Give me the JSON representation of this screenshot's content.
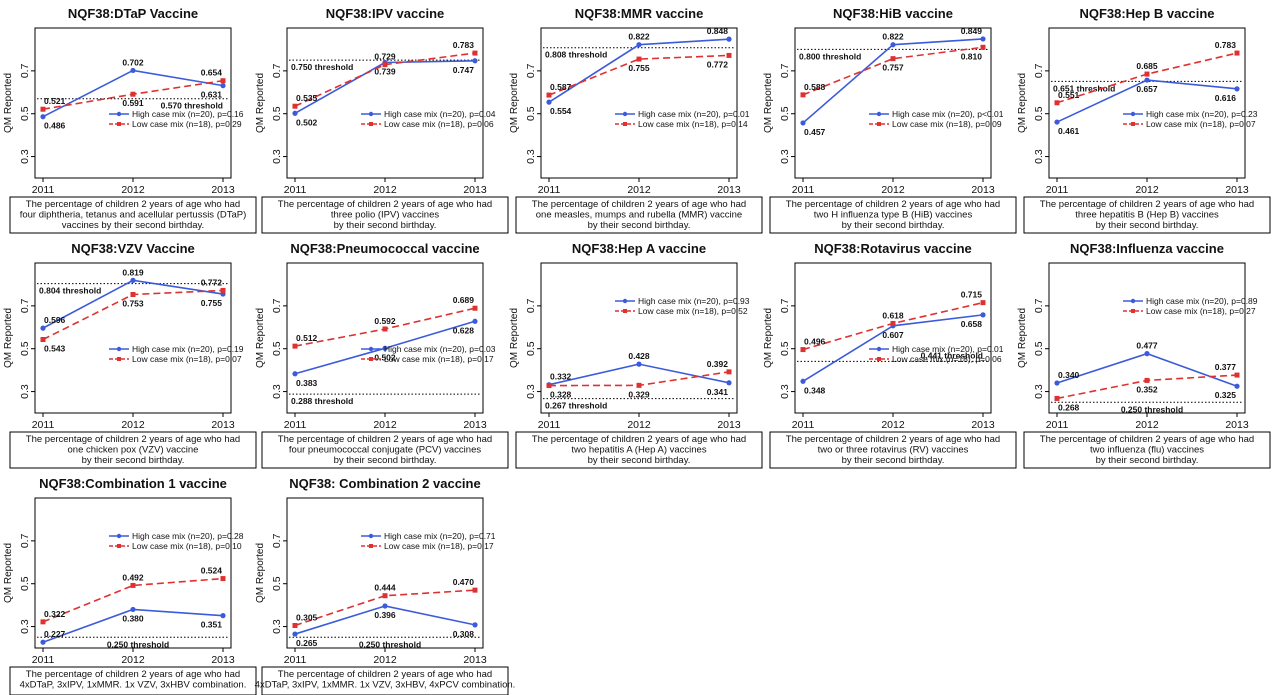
{
  "figure": {
    "y_axis_label": "QM Reported",
    "ylim": [
      0.2,
      0.9
    ],
    "yticks": [
      "0.3",
      "0.5",
      "0.7"
    ],
    "x_ticks": [
      "2011",
      "2012",
      "2013"
    ],
    "series_colors": {
      "high": "#3b5bdb",
      "low": "#e03131"
    },
    "threshold_suffix": "threshold"
  },
  "chart_data": [
    {
      "type": "line",
      "title": "NQF38:DTaP Vaccine",
      "x": [
        "2011",
        "2012",
        "2013"
      ],
      "series": [
        {
          "name": "High case mix (n=20), p=0.16",
          "values": [
            0.486,
            0.702,
            0.631
          ]
        },
        {
          "name": "Low case mix (n=18), p=0.29",
          "values": [
            0.521,
            0.591,
            0.654
          ]
        }
      ],
      "threshold": 0.57,
      "threshold_label": "0.570 threshold",
      "caption": [
        "The percentage of children 2 years of age who had",
        "four diphtheria, tetanus and acellular pertussis (DTaP)",
        "vaccines by their second birthday."
      ]
    },
    {
      "type": "line",
      "title": "NQF38:IPV vaccine",
      "x": [
        "2011",
        "2012",
        "2013"
      ],
      "series": [
        {
          "name": "High case mix (n=20), p=0.04",
          "values": [
            0.502,
            0.739,
            0.747
          ]
        },
        {
          "name": "Low case mix (n=18), p=0.06",
          "values": [
            0.535,
            0.729,
            0.783
          ]
        }
      ],
      "threshold": 0.75,
      "threshold_label": "0.750 threshold",
      "caption": [
        "The percentage of children 2 years of age who had",
        "three polio (IPV) vaccines",
        "by their second birthday."
      ]
    },
    {
      "type": "line",
      "title": "NQF38:MMR vaccine",
      "x": [
        "2011",
        "2012",
        "2013"
      ],
      "series": [
        {
          "name": "High case mix (n=20), p=0.01",
          "values": [
            0.554,
            0.822,
            0.848
          ]
        },
        {
          "name": "Low case mix (n=18), p=0.14",
          "values": [
            0.587,
            0.755,
            0.772
          ]
        }
      ],
      "threshold": 0.808,
      "threshold_label": "0.808 threshold",
      "caption": [
        "The percentage of children 2 years of age who had",
        "one measles, mumps and rubella (MMR) vaccine",
        "by their second birthday."
      ]
    },
    {
      "type": "line",
      "title": "NQF38:HiB vaccine",
      "x": [
        "2011",
        "2012",
        "2013"
      ],
      "series": [
        {
          "name": "High case mix (n=20), p<0.01",
          "values": [
            0.457,
            0.822,
            0.849
          ]
        },
        {
          "name": "Low case mix (n=18), p=0.09",
          "values": [
            0.588,
            0.757,
            0.81
          ]
        }
      ],
      "threshold": 0.8,
      "threshold_label": "0.800 threshold",
      "caption": [
        "The percentage of children 2 years of age who had",
        "two H influenza type B (HiB) vaccines",
        "by their second birthday."
      ]
    },
    {
      "type": "line",
      "title": "NQF38:Hep B vaccine",
      "x": [
        "2011",
        "2012",
        "2013"
      ],
      "series": [
        {
          "name": "High case mix (n=20), p=0.23",
          "values": [
            0.461,
            0.657,
            0.616
          ]
        },
        {
          "name": "Low case mix (n=18), p=0.07",
          "values": [
            0.551,
            0.685,
            0.783
          ]
        }
      ],
      "threshold": 0.651,
      "threshold_label": "0.651 threshold",
      "caption": [
        "The percentage of children 2 years of age who had",
        "three hepatitis B (Hep B) vaccines",
        "by their second birthday."
      ]
    },
    {
      "type": "line",
      "title": "NQF38:VZV Vaccine",
      "x": [
        "2011",
        "2012",
        "2013"
      ],
      "series": [
        {
          "name": "High case mix (n=20), p=0.19",
          "values": [
            0.596,
            0.819,
            0.755
          ]
        },
        {
          "name": "Low case mix (n=18), p=0.07",
          "values": [
            0.543,
            0.753,
            0.772
          ]
        }
      ],
      "threshold": 0.804,
      "threshold_label": "0.804 threshold",
      "caption": [
        "The percentage of children 2 years of age who had",
        "one chicken pox (VZV) vaccine",
        "by their second birthday."
      ]
    },
    {
      "type": "line",
      "title": "NQF38:Pneumococcal vaccine",
      "x": [
        "2011",
        "2012",
        "2013"
      ],
      "series": [
        {
          "name": "High case mix (n=20), p=0.03",
          "values": [
            0.383,
            0.502,
            0.628
          ]
        },
        {
          "name": "Low case mix (n=18), p=0.17",
          "values": [
            0.512,
            0.592,
            0.689
          ]
        }
      ],
      "threshold": 0.288,
      "threshold_label": "0.288 threshold",
      "caption": [
        "The percentage of children 2 years of age who had",
        "four pneumococcal conjugate (PCV) vaccines",
        "by their second birthday."
      ]
    },
    {
      "type": "line",
      "title": "NQF38:Hep A vaccine",
      "x": [
        "2011",
        "2012",
        "2013"
      ],
      "series": [
        {
          "name": "High case mix (n=20), p=0.93",
          "values": [
            0.332,
            0.428,
            0.341
          ]
        },
        {
          "name": "Low case mix (n=18), p=0.52",
          "values": [
            0.328,
            0.329,
            0.392
          ]
        }
      ],
      "threshold": 0.267,
      "threshold_label": "0.267 threshold",
      "caption": [
        "The percentage of children 2 years of age who had",
        "two hepatitis A (Hep A) vaccines",
        "by their second birthday."
      ]
    },
    {
      "type": "line",
      "title": "NQF38:Rotavirus vaccine",
      "x": [
        "2011",
        "2012",
        "2013"
      ],
      "series": [
        {
          "name": "High case mix (n=20), p=0.01",
          "values": [
            0.348,
            0.607,
            0.658
          ]
        },
        {
          "name": "Low case mix (n=18), p=0.06",
          "values": [
            0.496,
            0.618,
            0.715
          ]
        }
      ],
      "threshold": 0.441,
      "threshold_label": "0.441 threshold",
      "caption": [
        "The percentage of children 2 years of age who had",
        "two or three rotavirus (RV) vaccines",
        "by their second birthday."
      ]
    },
    {
      "type": "line",
      "title": "NQF38:Influenza vaccine",
      "x": [
        "2011",
        "2012",
        "2013"
      ],
      "series": [
        {
          "name": "High case mix (n=20), p=0.89",
          "values": [
            0.34,
            0.477,
            0.325
          ]
        },
        {
          "name": "Low case mix (n=18), p=0.27",
          "values": [
            0.268,
            0.352,
            0.377
          ]
        }
      ],
      "threshold": 0.25,
      "threshold_label": "0.250 threshold",
      "caption": [
        "The percentage of children 2 years of age who had",
        "two influenza (flu) vaccines",
        "by their second birthday."
      ]
    },
    {
      "type": "line",
      "title": "NQF38:Combination 1 vaccine",
      "x": [
        "2011",
        "2012",
        "2013"
      ],
      "series": [
        {
          "name": "High case mix (n=20), p=0.28",
          "values": [
            0.227,
            0.38,
            0.351
          ]
        },
        {
          "name": "Low case mix (n=18), p=0.10",
          "values": [
            0.322,
            0.492,
            0.524
          ]
        }
      ],
      "threshold": 0.25,
      "threshold_label": "0.250 threshold",
      "caption": [
        "The percentage of children 2 years of age who had",
        "4xDTaP, 3xIPV, 1xMMR. 1x VZV, 3xHBV combination."
      ]
    },
    {
      "type": "line",
      "title": "NQF38: Combination 2 vaccine",
      "x": [
        "2011",
        "2012",
        "2013"
      ],
      "series": [
        {
          "name": "High case mix (n=20), p=0.71",
          "values": [
            0.265,
            0.396,
            0.308
          ]
        },
        {
          "name": "Low case mix (n=18), p=0.17",
          "values": [
            0.305,
            0.444,
            0.47
          ]
        }
      ],
      "threshold": 0.25,
      "threshold_label": "0.250 threshold",
      "caption": [
        "The percentage of children 2 years of age who had",
        "4xDTaP, 3xIPV, 1xMMR. 1x VZV, 3xHBV, 4xPCV combination."
      ]
    }
  ]
}
